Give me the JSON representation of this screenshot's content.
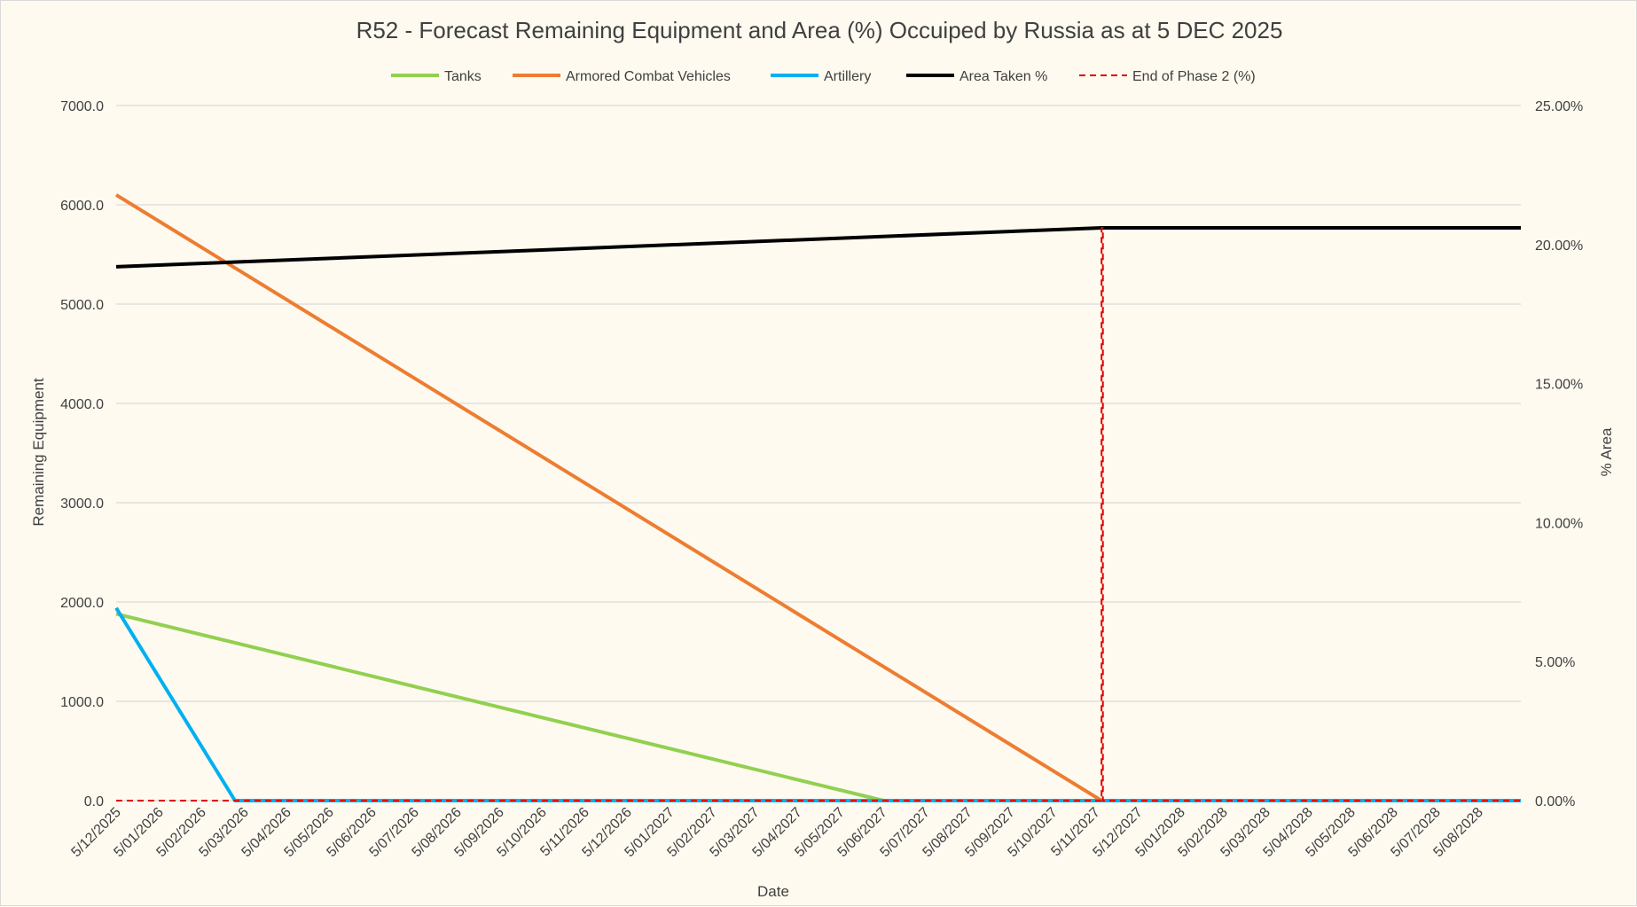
{
  "chart_data": {
    "type": "line",
    "title": "R52 - Forecast Remaining Equipment and Area (%) Occuiped by Russia as at 5 DEC 2025",
    "xlabel": "Date",
    "ylabel": "Remaining Equipment",
    "y2label": "% Area",
    "ylim": [
      0,
      7000
    ],
    "y2lim": [
      0,
      25
    ],
    "grid": true,
    "legend_position": "top",
    "x_tick_labels": [
      "5/12/2025",
      "5/01/2026",
      "5/02/2026",
      "5/03/2026",
      "5/04/2026",
      "5/05/2026",
      "5/06/2026",
      "5/07/2026",
      "5/08/2026",
      "5/09/2026",
      "5/10/2026",
      "5/11/2026",
      "5/12/2026",
      "5/01/2027",
      "5/02/2027",
      "5/03/2027",
      "5/04/2027",
      "5/05/2027",
      "5/06/2027",
      "5/07/2027",
      "5/08/2027",
      "5/09/2027",
      "5/10/2027",
      "5/11/2027",
      "5/12/2027",
      "5/01/2028",
      "5/02/2028",
      "5/03/2028",
      "5/04/2028",
      "5/05/2028",
      "5/06/2028",
      "5/07/2028",
      "5/08/2028"
    ],
    "y_tick_labels": [
      "0.0",
      "1000.0",
      "2000.0",
      "3000.0",
      "4000.0",
      "5000.0",
      "6000.0",
      "7000.0"
    ],
    "y2_tick_labels": [
      "0.00%",
      "5.00%",
      "10.00%",
      "15.00%",
      "20.00%",
      "25.00%"
    ],
    "x_range": [
      "2025-12-05",
      "2028-09-05"
    ],
    "series": [
      {
        "name": "Tanks",
        "axis": "left",
        "color": "#92d050",
        "dash": false,
        "points": [
          [
            "2025-12-05",
            1880
          ],
          [
            "2027-06-07",
            0
          ],
          [
            "2028-09-05",
            0
          ]
        ]
      },
      {
        "name": "Armored Combat Vehicles",
        "axis": "left",
        "color": "#ed7d31",
        "dash": false,
        "points": [
          [
            "2025-12-05",
            6100
          ],
          [
            "2027-11-10",
            0
          ],
          [
            "2028-09-05",
            0
          ]
        ]
      },
      {
        "name": "Artillery",
        "axis": "left",
        "color": "#00b0f0",
        "dash": false,
        "points": [
          [
            "2025-12-05",
            1940
          ],
          [
            "2026-02-28",
            0
          ],
          [
            "2028-09-05",
            0
          ]
        ]
      },
      {
        "name": "Area Taken %",
        "axis": "right",
        "color": "#000000",
        "dash": false,
        "points": [
          [
            "2025-12-05",
            19.2
          ],
          [
            "2027-11-10",
            20.6
          ],
          [
            "2028-09-05",
            20.6
          ]
        ]
      },
      {
        "name": "End of Phase 2 (%)",
        "axis": "right",
        "color": "#e00000",
        "dash": true,
        "points": [
          [
            "2025-12-05",
            0
          ],
          [
            "2027-11-10",
            0
          ],
          [
            "2027-11-10",
            20.6
          ],
          [
            "2027-11-11",
            20.6
          ],
          [
            "2027-11-11",
            0
          ],
          [
            "2028-09-05",
            0
          ]
        ]
      }
    ]
  }
}
